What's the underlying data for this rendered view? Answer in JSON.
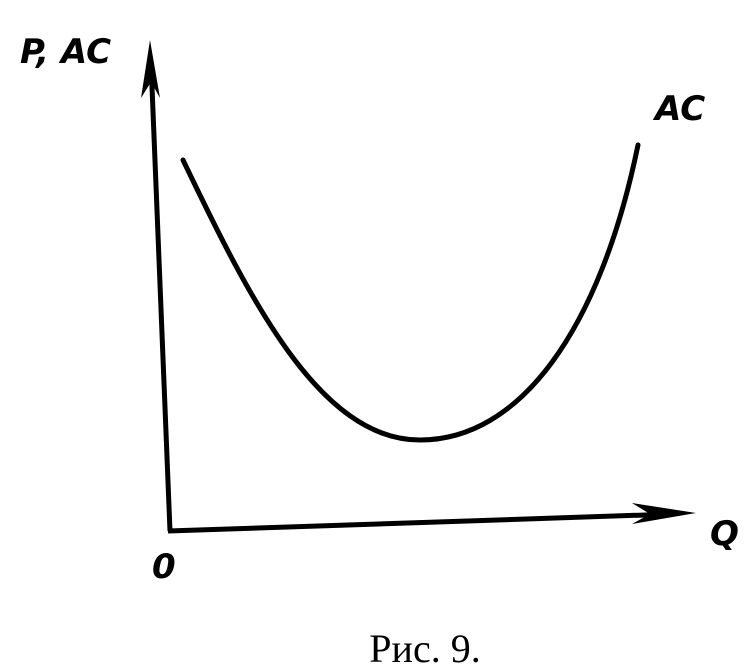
{
  "diagram": {
    "y_axis_label": "P, AC",
    "x_axis_label": "Q",
    "origin_label": "0",
    "curve_label": "AC"
  },
  "caption": "Рис. 9."
}
